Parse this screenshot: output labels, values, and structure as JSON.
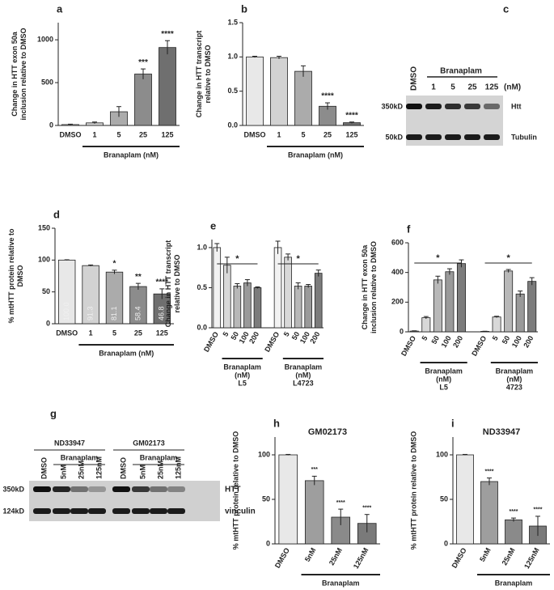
{
  "chart_data": [
    {
      "type": "bar",
      "panel": "a",
      "ylabel": [
        "Change in  HTT exon 50a",
        "inclusion relative to DMSO"
      ],
      "categories": [
        "DMSO",
        "1",
        "5",
        "25",
        "125"
      ],
      "values": [
        10,
        30,
        160,
        600,
        910
      ],
      "errors": [
        5,
        10,
        60,
        60,
        80
      ],
      "annotations": [
        null,
        null,
        null,
        "***",
        "****"
      ],
      "group_labels": [
        [
          "Branaplam (nM)"
        ]
      ],
      "colors": [
        "#e8e8e8",
        "#d2d2d2",
        "#ababab",
        "#8c8c8c",
        "#6f6f6f"
      ],
      "ylim": [
        0,
        1200
      ],
      "yticks": [
        0,
        500,
        1000
      ],
      "rotate_labels": false
    },
    {
      "type": "bar",
      "panel": "b",
      "ylabel": [
        "Change in HTT transcript",
        "relative to DMSO"
      ],
      "categories": [
        "DMSO",
        "1",
        "5",
        "25",
        "125"
      ],
      "values": [
        1.0,
        0.99,
        0.79,
        0.28,
        0.04
      ],
      "errors": [
        0.01,
        0.02,
        0.08,
        0.05,
        0.01
      ],
      "annotations": [
        null,
        null,
        null,
        "****",
        "****"
      ],
      "group_labels": [
        [
          "Branaplam (nM)"
        ]
      ],
      "colors": [
        "#e8e8e8",
        "#d2d2d2",
        "#ababab",
        "#8c8c8c",
        "#6f6f6f"
      ],
      "ylim": [
        0,
        1.5
      ],
      "yticks": [
        {
          "value": 0,
          "label": "0.0"
        },
        {
          "value": 0.5,
          "label": "0.5"
        },
        {
          "value": 1,
          "label": "1.0"
        },
        {
          "value": 1.5,
          "label": "1.5"
        }
      ],
      "rotate_labels": false
    },
    {
      "type": "bar",
      "panel": "d",
      "ylabel": [
        "% mtHTT protein relative to",
        "DMSO"
      ],
      "categories": [
        "DMSO",
        "1",
        "5",
        "25",
        "125"
      ],
      "values": [
        100,
        91.3,
        81.1,
        58.4,
        46.8
      ],
      "value_labels": [
        "100.0",
        "91.3",
        "81.1",
        "58.4",
        "46.8"
      ],
      "errors": [
        0.5,
        1,
        3,
        5,
        8
      ],
      "annotations": [
        null,
        null,
        "*",
        "**",
        "****"
      ],
      "group_labels": [
        [
          "Branaplam (nM)"
        ]
      ],
      "colors": [
        "#e8e8e8",
        "#d2d2d2",
        "#ababab",
        "#8c8c8c",
        "#6f6f6f"
      ],
      "ylim": [
        0,
        150
      ],
      "yticks": [
        0,
        50,
        100,
        150
      ],
      "rotate_labels": false
    },
    {
      "type": "bar",
      "panel": "e",
      "ylabel": [
        "Change in HTT transcript",
        "relative to DMSO"
      ],
      "categories": [
        "DMSO",
        "5",
        "50",
        "100",
        "200",
        "DMSO",
        "5",
        "50",
        "100",
        "200"
      ],
      "values": [
        1.0,
        0.78,
        0.52,
        0.56,
        0.5,
        1.0,
        0.88,
        0.52,
        0.52,
        0.68
      ],
      "errors": [
        0.05,
        0.1,
        0.03,
        0.04,
        0.01,
        0.08,
        0.04,
        0.04,
        0.02,
        0.04
      ],
      "group_labels": [
        [
          "Branaplam",
          "(nM)",
          "L5"
        ],
        [
          "Branaplam",
          "(nM)",
          "L4723"
        ]
      ],
      "group_annotations": [
        "*",
        "*"
      ],
      "colors": [
        "#f2f2f2",
        "#d8d8d8",
        "#b8b8b8",
        "#9a9a9a",
        "#7c7c7c",
        "#f2f2f2",
        "#d8d8d8",
        "#b8b8b8",
        "#9a9a9a",
        "#7c7c7c"
      ],
      "ylim": [
        0,
        1.1
      ],
      "yticks": [
        {
          "value": 0,
          "label": "0.0"
        },
        {
          "value": 0.5,
          "label": "0.5"
        },
        {
          "value": 1,
          "label": "1.0"
        }
      ],
      "rotate_labels": true
    },
    {
      "type": "bar",
      "panel": "f",
      "ylabel": [
        "Change in HTT exon 50a",
        "inclusion relative to DMSO"
      ],
      "categories": [
        "DMSO",
        "5",
        "50",
        "100",
        "200",
        "DMSO",
        "5",
        "50",
        "100",
        "200"
      ],
      "values": [
        5,
        95,
        350,
        405,
        460,
        3,
        100,
        410,
        255,
        340
      ],
      "errors": [
        2,
        8,
        25,
        20,
        25,
        1,
        5,
        10,
        20,
        25
      ],
      "group_labels": [
        [
          "Branaplam",
          "(nM)",
          "L5"
        ],
        [
          "Branaplam",
          "(nM)",
          "4723"
        ]
      ],
      "group_annotations": [
        "*",
        "*"
      ],
      "colors": [
        "#f2f2f2",
        "#d8d8d8",
        "#b8b8b8",
        "#9a9a9a",
        "#7c7c7c",
        "#f2f2f2",
        "#d8d8d8",
        "#b8b8b8",
        "#9a9a9a",
        "#7c7c7c"
      ],
      "ylim": [
        0,
        600
      ],
      "yticks": [
        0,
        200,
        400,
        600
      ],
      "rotate_labels": true
    },
    {
      "type": "bar",
      "panel": "h",
      "title": "GM02173",
      "ylabel": [
        "% mtHTT protein relative to DMSO"
      ],
      "categories": [
        "DMSO",
        "5nM",
        "25nM",
        "125nM"
      ],
      "values": [
        100,
        71,
        30,
        23
      ],
      "errors": [
        0.5,
        5,
        9,
        10
      ],
      "annotations": [
        null,
        "***",
        "****",
        "****"
      ],
      "group_labels": [
        [
          "Branaplam"
        ]
      ],
      "colors": [
        "#e8e8e8",
        "#9e9e9e",
        "#8a8a8a",
        "#7a7a7a"
      ],
      "ylim": [
        0,
        120
      ],
      "yticks": [
        0,
        50,
        100
      ],
      "rotate_labels": true
    },
    {
      "type": "bar",
      "panel": "i",
      "title": "ND33947",
      "ylabel": [
        "% mtHTT protein relative to DMSO"
      ],
      "categories": [
        "DMSO",
        "5nM",
        "25nM",
        "125nM"
      ],
      "values": [
        100,
        70,
        27,
        20
      ],
      "errors": [
        0.5,
        4,
        2,
        11
      ],
      "annotations": [
        null,
        "****",
        "****",
        "****"
      ],
      "group_labels": [
        [
          "Branaplam"
        ]
      ],
      "colors": [
        "#e8e8e8",
        "#9e9e9e",
        "#8a8a8a",
        "#7a7a7a"
      ],
      "ylim": [
        0,
        120
      ],
      "yticks": [
        0,
        50,
        100
      ],
      "rotate_labels": true
    }
  ],
  "blots": [
    {
      "panel": "c",
      "header": "Branaplam",
      "unit": "(nM)",
      "lanes": [
        "DMSO",
        "1",
        "5",
        "25",
        "125"
      ],
      "markers": [
        "350kD",
        "50kD"
      ],
      "proteins": [
        "Htt",
        "Tubulin"
      ]
    },
    {
      "panel": "g",
      "groups": [
        {
          "name": "ND33947",
          "treatment": "Branaplam"
        },
        {
          "name": "GM02173",
          "treatment": "Branaplam"
        }
      ],
      "lanes": [
        "DMSO",
        "5nM",
        "25nM",
        "125nM",
        "DMSO",
        "5nM",
        "25nM",
        "125nM"
      ],
      "markers": [
        "350kD",
        "124kD"
      ],
      "proteins": [
        "HTT",
        "vinculin"
      ]
    }
  ]
}
